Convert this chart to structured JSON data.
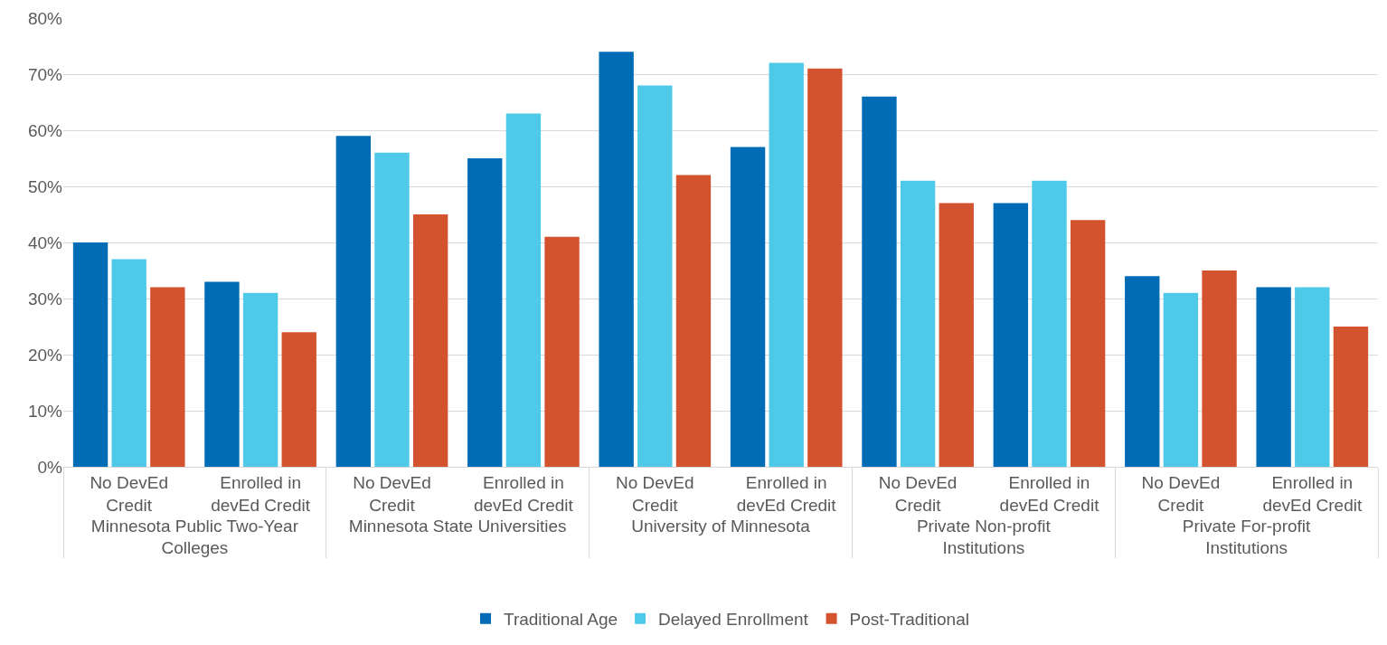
{
  "chart_data": {
    "type": "bar",
    "categories": [
      "No DevEd Credit",
      "Enrolled in devEd Credit",
      "No DevEd Credit",
      "Enrolled in devEd Credit",
      "No DevEd Credit",
      "Enrolled in devEd Credit",
      "No DevEd Credit",
      "Enrolled in devEd Credit",
      "No DevEd Credit",
      "Enrolled in devEd Credit"
    ],
    "annotations": [
      "Minnesota Public Two-Year Colleges",
      "Minnesota State Universities",
      "University of Minnesota",
      "Private Non-profit Institutions",
      "Private For-profit Institutions"
    ],
    "series": [
      {
        "name": "Traditional Age",
        "color": "#006cb5",
        "values": [
          40,
          33,
          59,
          55,
          74,
          57,
          66,
          47,
          34,
          32
        ]
      },
      {
        "name": "Delayed Enrollment",
        "color": "#4fc9e8",
        "values": [
          37,
          31,
          56,
          63,
          68,
          72,
          51,
          51,
          31,
          32
        ]
      },
      {
        "name": "Post-Traditional",
        "color": "#d4532f",
        "values": [
          32,
          24,
          45,
          41,
          52,
          71,
          47,
          44,
          35,
          25
        ]
      }
    ],
    "ylim": [
      0,
      80
    ],
    "yticks": [
      {
        "value": 0,
        "label": "0%"
      },
      {
        "value": 10,
        "label": "10%"
      },
      {
        "value": 20,
        "label": "20%"
      },
      {
        "value": 30,
        "label": "30%"
      },
      {
        "value": 40,
        "label": "40%"
      },
      {
        "value": 50,
        "label": "50%"
      },
      {
        "value": 60,
        "label": "60%"
      },
      {
        "value": 70,
        "label": "70%"
      },
      {
        "value": 80,
        "label": "80%"
      }
    ],
    "grid": "y",
    "legend": "bottom"
  }
}
